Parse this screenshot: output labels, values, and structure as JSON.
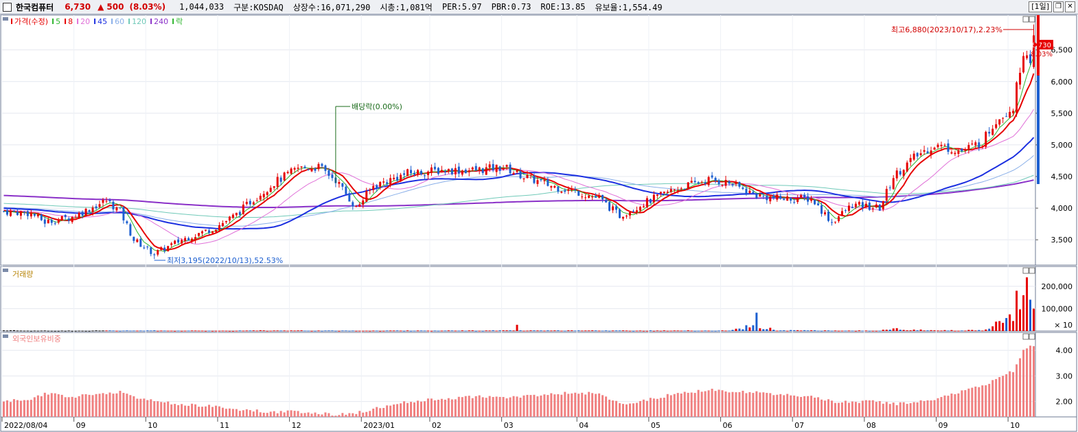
{
  "header": {
    "stock_name": "한국컴퓨터",
    "price": "6,730",
    "change_arrow": "▲",
    "change": "500",
    "change_pct": "(8.03%)",
    "volume": "1,044,033",
    "market": "구분:KOSDAQ",
    "shares": "상장수:16,071,290",
    "market_cap": "시총:1,081억",
    "per": "PER:5.97",
    "pbr": "PBR:0.73",
    "roe": "ROE:13.85",
    "float_ratio": "유보율:1,554.49",
    "period": "[1일]",
    "restore_icon": "restore-icon",
    "close_icon": "close-icon"
  },
  "colors": {
    "up": "#e60000",
    "down": "#1c5fd0",
    "ma5": "#2db52d",
    "ma8": "#e60000",
    "ma20": "#e070d8",
    "ma45": "#1b2fe0",
    "ma60": "#88aee8",
    "ma120": "#6fc9b8",
    "ma240": "#8a30c8",
    "foreign": "#f08080"
  },
  "legend": [
    {
      "label": "가격(수정)",
      "color": "#e60000"
    },
    {
      "label": "5",
      "color": "#2db52d"
    },
    {
      "label": "8",
      "color": "#e60000"
    },
    {
      "label": "20",
      "color": "#e070d8"
    },
    {
      "label": "45",
      "color": "#1b2fe0"
    },
    {
      "label": "60",
      "color": "#88aee8"
    },
    {
      "label": "120",
      "color": "#6fc9b8"
    },
    {
      "label": "240",
      "color": "#8a30c8"
    },
    {
      "label": "락",
      "color": "#2db52d"
    }
  ],
  "annotations": {
    "high": "최고6,880(2023/10/17),2.23%",
    "low": "최저3,195(2022/10/13),52.53%",
    "dividend": "배당락(0.00%)"
  },
  "price_badge": {
    "price": "6,730",
    "pct": "8.03%"
  },
  "volume_panel": {
    "title": "거래량",
    "multiplier": "× 10"
  },
  "foreign_panel": {
    "title": "외국인보유비중"
  },
  "chart_data": {
    "type": "candlestick",
    "price_axis": {
      "ylim": [
        3100,
        7050
      ],
      "ticks": [
        "3,500",
        "4,000",
        "4,500",
        "5,000",
        "5,500",
        "6,000",
        "6,500"
      ]
    },
    "volume_axis": {
      "ylim": [
        0,
        270000
      ],
      "ticks": [
        "100,000",
        "200,000"
      ]
    },
    "foreign_axis": {
      "ylim": [
        1.4,
        4.7
      ],
      "ticks": [
        "2.00",
        "3.00",
        "4.00"
      ]
    },
    "x_labels": [
      "2022/08/04",
      "09",
      "10",
      "11",
      "12",
      "2023/01",
      "02",
      "03",
      "04",
      "05",
      "06",
      "07",
      "08",
      "09",
      "10"
    ],
    "keyframes": [
      {
        "i": 0,
        "p": 3950,
        "v": 3000,
        "f": 2.0
      },
      {
        "i": 8,
        "p": 3920,
        "v": 1500,
        "f": 2.1
      },
      {
        "i": 12,
        "p": 3780,
        "v": 1500,
        "f": 2.3
      },
      {
        "i": 20,
        "p": 3860,
        "v": 1500,
        "f": 2.2
      },
      {
        "i": 30,
        "p": 4120,
        "v": 2000,
        "f": 2.3
      },
      {
        "i": 34,
        "p": 3950,
        "v": 1500,
        "f": 2.4
      },
      {
        "i": 38,
        "p": 3500,
        "v": 2000,
        "f": 2.2
      },
      {
        "i": 44,
        "p": 3280,
        "v": 2000,
        "f": 2.0
      },
      {
        "i": 52,
        "p": 3500,
        "v": 1500,
        "f": 1.9
      },
      {
        "i": 62,
        "p": 3700,
        "v": 1500,
        "f": 1.8
      },
      {
        "i": 68,
        "p": 3900,
        "v": 1500,
        "f": 1.7
      },
      {
        "i": 72,
        "p": 4100,
        "v": 3000,
        "f": 1.65
      },
      {
        "i": 79,
        "p": 4400,
        "v": 2000,
        "f": 1.6
      },
      {
        "i": 86,
        "p": 4630,
        "v": 2000,
        "f": 1.6
      },
      {
        "i": 92,
        "p": 4650,
        "v": 2000,
        "f": 1.55
      },
      {
        "i": 97,
        "p": 4450,
        "v": 1500,
        "f": 1.5
      },
      {
        "i": 103,
        "p": 4000,
        "v": 2000,
        "f": 1.55
      },
      {
        "i": 108,
        "p": 4350,
        "v": 1500,
        "f": 1.7
      },
      {
        "i": 118,
        "p": 4550,
        "v": 2000,
        "f": 2.0
      },
      {
        "i": 128,
        "p": 4600,
        "v": 2000,
        "f": 2.1
      },
      {
        "i": 138,
        "p": 4600,
        "v": 2000,
        "f": 2.2
      },
      {
        "i": 146,
        "p": 4650,
        "v": 2500,
        "f": 2.15
      },
      {
        "i": 152,
        "p": 4500,
        "v": 2000,
        "f": 2.2
      },
      {
        "i": 160,
        "p": 4350,
        "v": 2000,
        "f": 2.3
      },
      {
        "i": 168,
        "p": 4250,
        "v": 2000,
        "f": 2.35
      },
      {
        "i": 174,
        "p": 4150,
        "v": 2000,
        "f": 2.3
      },
      {
        "i": 180,
        "p": 3880,
        "v": 2000,
        "f": 1.9
      },
      {
        "i": 186,
        "p": 4050,
        "v": 2000,
        "f": 2.0
      },
      {
        "i": 196,
        "p": 4300,
        "v": 2000,
        "f": 2.3
      },
      {
        "i": 206,
        "p": 4450,
        "v": 2000,
        "f": 2.45
      },
      {
        "i": 212,
        "p": 4400,
        "v": 2000,
        "f": 2.4
      },
      {
        "i": 220,
        "p": 4200,
        "v": 25000,
        "f": 2.35
      },
      {
        "i": 226,
        "p": 4150,
        "v": 3000,
        "f": 2.3
      },
      {
        "i": 236,
        "p": 4150,
        "v": 2500,
        "f": 2.2
      },
      {
        "i": 242,
        "p": 3780,
        "v": 2000,
        "f": 2.0
      },
      {
        "i": 248,
        "p": 4050,
        "v": 2000,
        "f": 2.0
      },
      {
        "i": 256,
        "p": 4000,
        "v": 2000,
        "f": 2.0
      },
      {
        "i": 260,
        "p": 4500,
        "v": 10000,
        "f": 1.9
      },
      {
        "i": 266,
        "p": 4800,
        "v": 5000,
        "f": 1.95
      },
      {
        "i": 272,
        "p": 5000,
        "v": 3000,
        "f": 2.1
      },
      {
        "i": 280,
        "p": 4900,
        "v": 3000,
        "f": 2.4
      },
      {
        "i": 286,
        "p": 5050,
        "v": 5000,
        "f": 2.6
      },
      {
        "i": 290,
        "p": 5400,
        "v": 40000,
        "f": 2.9
      },
      {
        "i": 295,
        "p": 5600,
        "v": 50000,
        "f": 3.2
      },
      {
        "i": 298,
        "p": 6500,
        "v": 170000,
        "f": 4.0
      },
      {
        "i": 300,
        "p": 6200,
        "v": 140000,
        "f": 4.2
      },
      {
        "i": 301,
        "p": 6730,
        "v": 100000,
        "f": 4.2
      }
    ],
    "high": 6880,
    "low": 3195,
    "ma_periods": [
      5,
      8,
      20,
      45,
      60,
      120,
      240
    ]
  }
}
